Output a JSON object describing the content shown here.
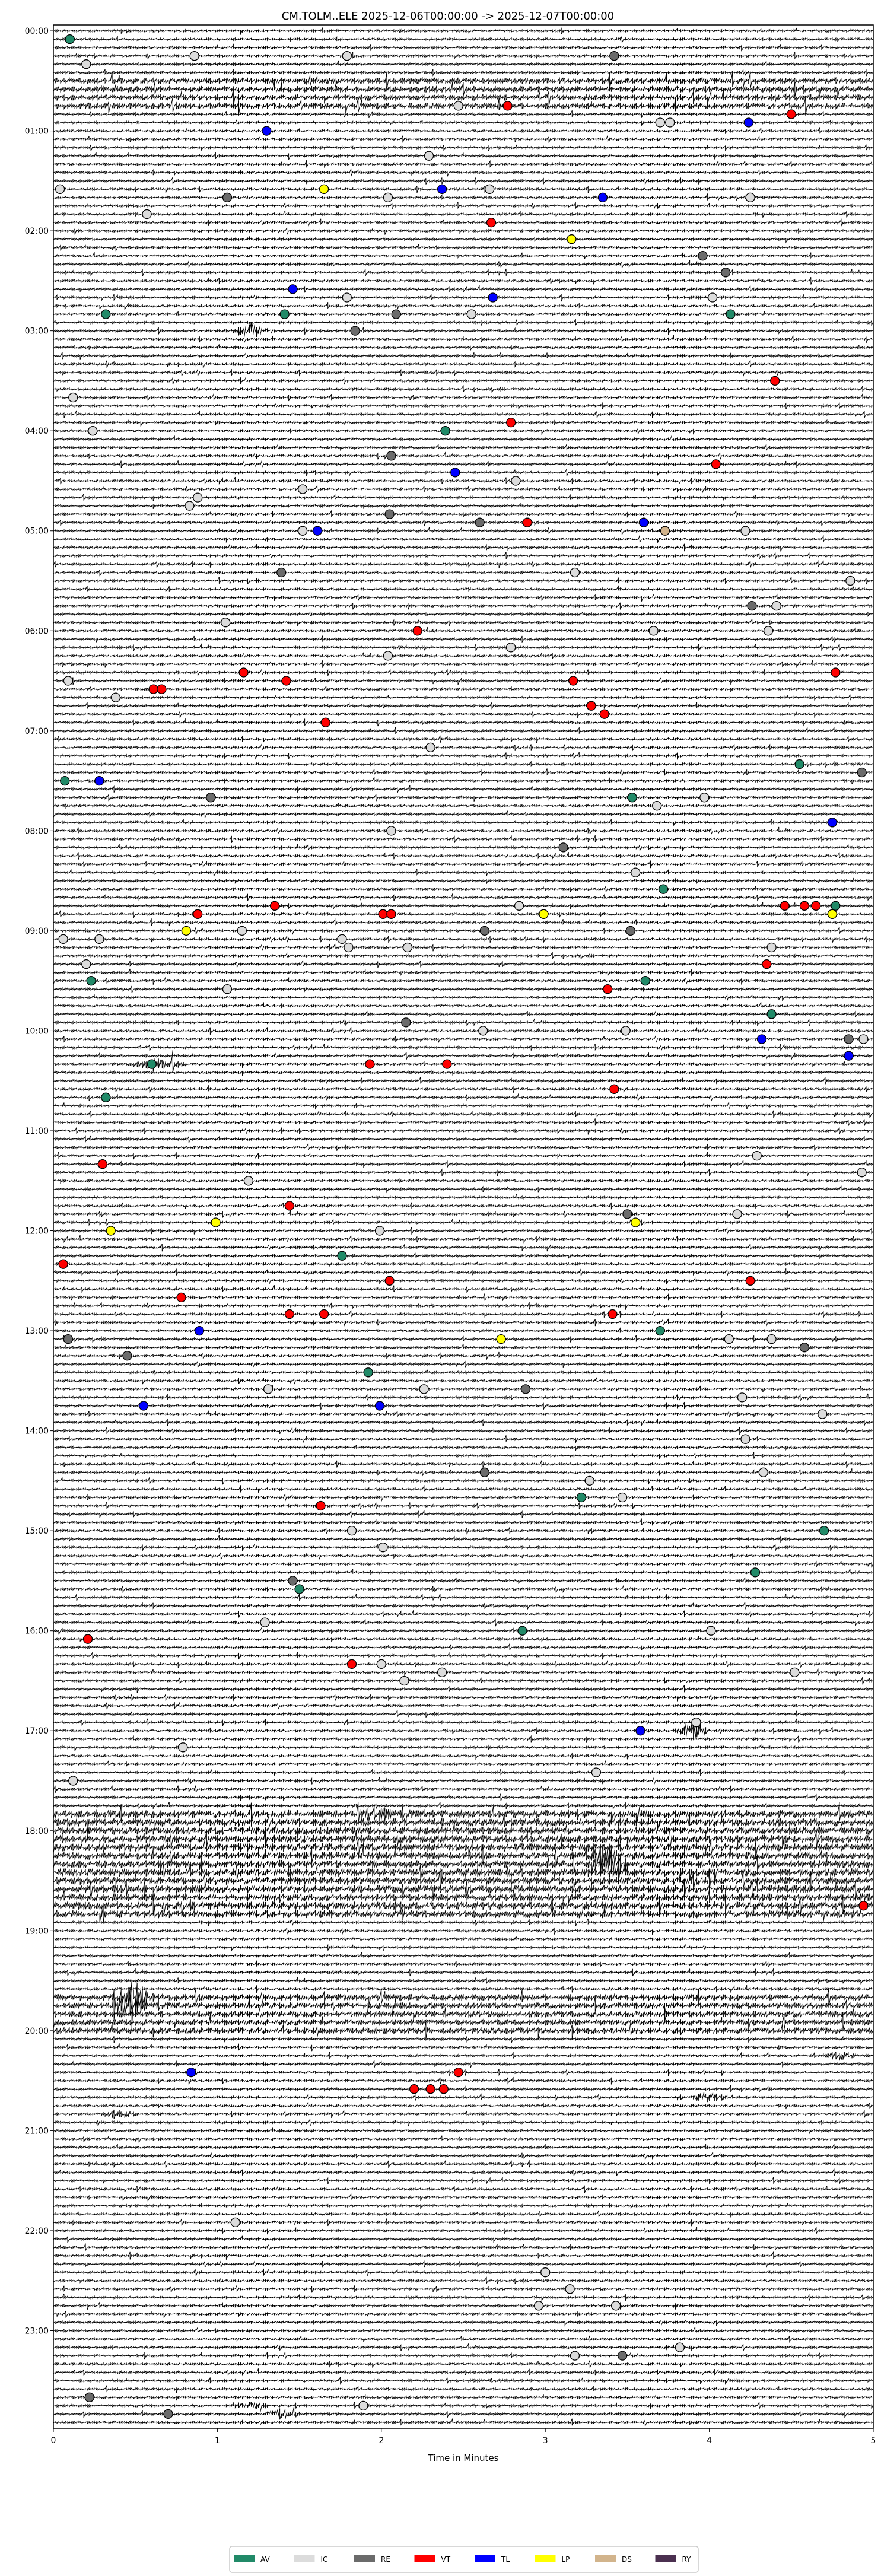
{
  "chart_data": {
    "type": "scatter",
    "subtype": "helicorder",
    "title": "CM.TOLM..ELE  2025-12-06T00:00:00 -> 2025-12-07T00:00:00",
    "xlabel": "Time in Minutes",
    "ylabel": "",
    "xlim": [
      0,
      5
    ],
    "xticks": [
      "0",
      "1",
      "2",
      "3",
      "4",
      "5"
    ],
    "rows_total": 288,
    "minutes_per_row": 5,
    "yticks": [
      "00:00",
      "01:00",
      "02:00",
      "03:00",
      "04:00",
      "05:00",
      "06:00",
      "07:00",
      "08:00",
      "09:00",
      "10:00",
      "11:00",
      "12:00",
      "13:00",
      "14:00",
      "15:00",
      "16:00",
      "17:00",
      "18:00",
      "19:00",
      "20:00",
      "21:00",
      "22:00",
      "23:00"
    ],
    "legend": {
      "placement": "bottom-center",
      "entries": [
        {
          "label": "AV",
          "color": "#218a68"
        },
        {
          "label": "IC",
          "color": "#dcdcdc"
        },
        {
          "label": "RE",
          "color": "#6b6b6b"
        },
        {
          "label": "VT",
          "color": "#ff0000"
        },
        {
          "label": "TL",
          "color": "#0000ff"
        },
        {
          "label": "LP",
          "color": "#ffff00"
        },
        {
          "label": "DS",
          "color": "#d2b48c"
        },
        {
          "label": "RY",
          "color": "#4b3050"
        }
      ]
    },
    "noisy_rows": [
      [
        6,
        9,
        2.5
      ],
      [
        214,
        226,
        3.2
      ],
      [
        236,
        240,
        2.6
      ]
    ],
    "bursts": [
      [
        36,
        1.2,
        14
      ],
      [
        124,
        0.58,
        12
      ],
      [
        124,
        0.7,
        8
      ],
      [
        204,
        3.9,
        18
      ],
      [
        214,
        1.95,
        8
      ],
      [
        219,
        3.35,
        14
      ],
      [
        220,
        3.4,
        16
      ],
      [
        236,
        0.5,
        22
      ],
      [
        237,
        0.45,
        18
      ],
      [
        248,
        4.0,
        10
      ],
      [
        250,
        0.4,
        8
      ],
      [
        243,
        4.8,
        8
      ],
      [
        286,
        1.4,
        10
      ],
      [
        285,
        1.2,
        6
      ]
    ],
    "events": [
      [
        1,
        0.1,
        "AV"
      ],
      [
        3,
        0.86,
        "IC"
      ],
      [
        3,
        1.79,
        "IC"
      ],
      [
        3,
        3.42,
        "RE"
      ],
      [
        4,
        0.2,
        "IC"
      ],
      [
        9,
        2.47,
        "IC"
      ],
      [
        9,
        2.77,
        "VT"
      ],
      [
        10,
        4.5,
        "VT"
      ],
      [
        11,
        3.7,
        "IC"
      ],
      [
        11,
        3.76,
        "IC"
      ],
      [
        11,
        4.24,
        "TL"
      ],
      [
        12,
        1.3,
        "TL"
      ],
      [
        15,
        2.29,
        "IC"
      ],
      [
        19,
        0.04,
        "IC"
      ],
      [
        19,
        1.65,
        "LP"
      ],
      [
        19,
        2.37,
        "TL"
      ],
      [
        19,
        2.66,
        "IC"
      ],
      [
        20,
        1.06,
        "RE"
      ],
      [
        20,
        2.04,
        "IC"
      ],
      [
        20,
        3.35,
        "TL"
      ],
      [
        20,
        4.25,
        "IC"
      ],
      [
        22,
        0.57,
        "IC"
      ],
      [
        23,
        2.67,
        "VT"
      ],
      [
        25,
        3.16,
        "LP"
      ],
      [
        27,
        3.96,
        "RE"
      ],
      [
        29,
        4.1,
        "RE"
      ],
      [
        31,
        1.46,
        "TL"
      ],
      [
        32,
        1.79,
        "IC"
      ],
      [
        32,
        2.68,
        "TL"
      ],
      [
        32,
        4.02,
        "IC"
      ],
      [
        34,
        0.32,
        "AV"
      ],
      [
        34,
        1.41,
        "AV"
      ],
      [
        34,
        2.09,
        "RE"
      ],
      [
        34,
        2.55,
        "IC"
      ],
      [
        34,
        4.13,
        "AV"
      ],
      [
        36,
        1.84,
        "RE"
      ],
      [
        42,
        4.4,
        "VT"
      ],
      [
        44,
        0.12,
        "IC"
      ],
      [
        47,
        2.79,
        "VT"
      ],
      [
        48,
        0.24,
        "IC"
      ],
      [
        48,
        2.39,
        "AV"
      ],
      [
        51,
        2.06,
        "RE"
      ],
      [
        52,
        4.04,
        "VT"
      ],
      [
        53,
        2.45,
        "TL"
      ],
      [
        54,
        2.82,
        "IC"
      ],
      [
        55,
        1.52,
        "IC"
      ],
      [
        56,
        0.88,
        "IC"
      ],
      [
        57,
        0.83,
        "IC"
      ],
      [
        58,
        2.05,
        "RE"
      ],
      [
        59,
        2.6,
        "RE"
      ],
      [
        59,
        2.89,
        "VT"
      ],
      [
        59,
        3.6,
        "TL"
      ],
      [
        60,
        1.52,
        "IC"
      ],
      [
        60,
        1.61,
        "TL"
      ],
      [
        60,
        3.73,
        "DS"
      ],
      [
        60,
        4.22,
        "IC"
      ],
      [
        65,
        1.39,
        "RE"
      ],
      [
        65,
        3.18,
        "IC"
      ],
      [
        66,
        4.86,
        "IC"
      ],
      [
        69,
        4.26,
        "RE"
      ],
      [
        69,
        4.41,
        "IC"
      ],
      [
        71,
        1.05,
        "IC"
      ],
      [
        72,
        2.22,
        "VT"
      ],
      [
        72,
        3.66,
        "IC"
      ],
      [
        72,
        4.36,
        "IC"
      ],
      [
        74,
        2.79,
        "IC"
      ],
      [
        75,
        2.04,
        "IC"
      ],
      [
        77,
        1.16,
        "VT"
      ],
      [
        77,
        4.77,
        "VT"
      ],
      [
        78,
        0.09,
        "IC"
      ],
      [
        78,
        1.42,
        "VT"
      ],
      [
        78,
        3.17,
        "VT"
      ],
      [
        79,
        0.61,
        "VT"
      ],
      [
        79,
        0.66,
        "VT"
      ],
      [
        80,
        0.38,
        "IC"
      ],
      [
        81,
        3.28,
        "VT"
      ],
      [
        82,
        3.36,
        "VT"
      ],
      [
        83,
        1.66,
        "VT"
      ],
      [
        86,
        2.3,
        "IC"
      ],
      [
        88,
        4.55,
        "AV"
      ],
      [
        89,
        4.93,
        "RE"
      ],
      [
        90,
        0.07,
        "AV"
      ],
      [
        90,
        0.28,
        "TL"
      ],
      [
        92,
        0.96,
        "RE"
      ],
      [
        92,
        3.53,
        "AV"
      ],
      [
        92,
        3.97,
        "IC"
      ],
      [
        93,
        3.68,
        "IC"
      ],
      [
        95,
        4.75,
        "TL"
      ],
      [
        96,
        2.06,
        "IC"
      ],
      [
        98,
        3.11,
        "RE"
      ],
      [
        101,
        3.55,
        "IC"
      ],
      [
        103,
        3.72,
        "AV"
      ],
      [
        105,
        1.35,
        "VT"
      ],
      [
        105,
        2.84,
        "IC"
      ],
      [
        105,
        4.46,
        "VT"
      ],
      [
        105,
        4.58,
        "VT"
      ],
      [
        105,
        4.65,
        "VT"
      ],
      [
        105,
        4.77,
        "AV"
      ],
      [
        106,
        0.88,
        "VT"
      ],
      [
        106,
        2.01,
        "VT"
      ],
      [
        106,
        2.06,
        "VT"
      ],
      [
        106,
        2.99,
        "LP"
      ],
      [
        106,
        4.75,
        "LP"
      ],
      [
        108,
        0.81,
        "LP"
      ],
      [
        108,
        1.15,
        "IC"
      ],
      [
        108,
        2.63,
        "RE"
      ],
      [
        108,
        3.52,
        "RE"
      ],
      [
        109,
        0.06,
        "IC"
      ],
      [
        109,
        0.28,
        "IC"
      ],
      [
        109,
        1.76,
        "IC"
      ],
      [
        110,
        1.8,
        "IC"
      ],
      [
        110,
        2.16,
        "IC"
      ],
      [
        110,
        4.38,
        "IC"
      ],
      [
        112,
        0.2,
        "IC"
      ],
      [
        112,
        4.35,
        "VT"
      ],
      [
        114,
        0.23,
        "AV"
      ],
      [
        114,
        3.61,
        "AV"
      ],
      [
        115,
        1.06,
        "IC"
      ],
      [
        115,
        3.38,
        "VT"
      ],
      [
        118,
        4.38,
        "AV"
      ],
      [
        119,
        2.15,
        "RE"
      ],
      [
        120,
        2.62,
        "IC"
      ],
      [
        120,
        3.49,
        "IC"
      ],
      [
        121,
        4.32,
        "TL"
      ],
      [
        121,
        4.85,
        "RE"
      ],
      [
        121,
        4.94,
        "IC"
      ],
      [
        123,
        4.85,
        "TL"
      ],
      [
        124,
        0.6,
        "AV"
      ],
      [
        124,
        1.93,
        "VT"
      ],
      [
        124,
        2.4,
        "VT"
      ],
      [
        127,
        3.42,
        "VT"
      ],
      [
        128,
        0.32,
        "AV"
      ],
      [
        135,
        4.29,
        "IC"
      ],
      [
        136,
        0.3,
        "VT"
      ],
      [
        137,
        4.93,
        "IC"
      ],
      [
        138,
        1.19,
        "IC"
      ],
      [
        141,
        1.44,
        "VT"
      ],
      [
        142,
        3.5,
        "RE"
      ],
      [
        142,
        4.17,
        "IC"
      ],
      [
        143,
        0.99,
        "LP"
      ],
      [
        143,
        3.55,
        "LP"
      ],
      [
        144,
        0.35,
        "LP"
      ],
      [
        144,
        1.99,
        "IC"
      ],
      [
        147,
        1.76,
        "AV"
      ],
      [
        148,
        0.06,
        "VT"
      ],
      [
        150,
        2.05,
        "VT"
      ],
      [
        150,
        4.25,
        "VT"
      ],
      [
        152,
        0.78,
        "VT"
      ],
      [
        154,
        1.44,
        "VT"
      ],
      [
        154,
        1.65,
        "VT"
      ],
      [
        154,
        3.41,
        "VT"
      ],
      [
        156,
        0.89,
        "TL"
      ],
      [
        156,
        3.7,
        "AV"
      ],
      [
        157,
        0.09,
        "RE"
      ],
      [
        157,
        2.73,
        "LP"
      ],
      [
        157,
        4.12,
        "IC"
      ],
      [
        157,
        4.38,
        "IC"
      ],
      [
        158,
        4.58,
        "RE"
      ],
      [
        159,
        0.45,
        "RE"
      ],
      [
        161,
        1.92,
        "AV"
      ],
      [
        163,
        1.31,
        "IC"
      ],
      [
        163,
        2.26,
        "IC"
      ],
      [
        163,
        2.88,
        "RE"
      ],
      [
        164,
        4.2,
        "IC"
      ],
      [
        165,
        0.55,
        "TL"
      ],
      [
        165,
        1.99,
        "TL"
      ],
      [
        166,
        4.69,
        "IC"
      ],
      [
        169,
        4.22,
        "IC"
      ],
      [
        173,
        2.63,
        "RE"
      ],
      [
        173,
        4.33,
        "IC"
      ],
      [
        174,
        3.27,
        "IC"
      ],
      [
        176,
        3.22,
        "AV"
      ],
      [
        176,
        3.47,
        "IC"
      ],
      [
        177,
        1.63,
        "VT"
      ],
      [
        180,
        1.82,
        "IC"
      ],
      [
        180,
        4.7,
        "AV"
      ],
      [
        182,
        2.01,
        "IC"
      ],
      [
        185,
        4.28,
        "AV"
      ],
      [
        186,
        1.46,
        "RE"
      ],
      [
        187,
        1.5,
        "AV"
      ],
      [
        191,
        1.29,
        "IC"
      ],
      [
        192,
        2.86,
        "AV"
      ],
      [
        192,
        4.01,
        "IC"
      ],
      [
        193,
        0.21,
        "VT"
      ],
      [
        196,
        1.82,
        "VT"
      ],
      [
        196,
        2.0,
        "IC"
      ],
      [
        197,
        2.37,
        "IC"
      ],
      [
        197,
        4.52,
        "IC"
      ],
      [
        198,
        2.14,
        "IC"
      ],
      [
        203,
        3.92,
        "IC"
      ],
      [
        204,
        3.58,
        "TL"
      ],
      [
        206,
        0.79,
        "IC"
      ],
      [
        209,
        3.31,
        "IC"
      ],
      [
        210,
        0.12,
        "IC"
      ],
      [
        225,
        4.94,
        "VT"
      ],
      [
        245,
        0.84,
        "TL"
      ],
      [
        245,
        2.47,
        "VT"
      ],
      [
        247,
        2.2,
        "VT"
      ],
      [
        247,
        2.3,
        "VT"
      ],
      [
        247,
        2.38,
        "VT"
      ],
      [
        263,
        1.11,
        "IC"
      ],
      [
        269,
        3.0,
        "IC"
      ],
      [
        271,
        3.15,
        "IC"
      ],
      [
        273,
        2.96,
        "IC"
      ],
      [
        273,
        3.43,
        "IC"
      ],
      [
        278,
        3.82,
        "IC"
      ],
      [
        279,
        3.18,
        "IC"
      ],
      [
        279,
        3.47,
        "RE"
      ],
      [
        284,
        0.22,
        "RE"
      ],
      [
        285,
        1.89,
        "IC"
      ],
      [
        286,
        0.7,
        "RE"
      ]
    ]
  }
}
